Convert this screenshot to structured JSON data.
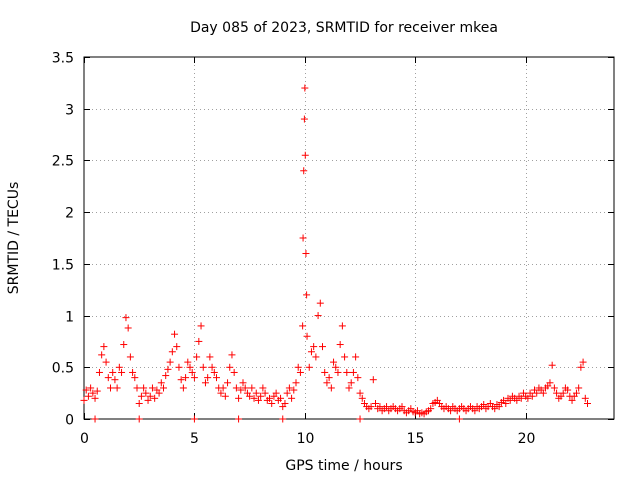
{
  "chart_data": {
    "type": "scatter",
    "title": "Day 085 of 2023, SRMTID for receiver mkea",
    "xlabel": "GPS time / hours",
    "ylabel": "SRMTID / TECUs",
    "xlim": [
      0,
      24
    ],
    "ylim": [
      0,
      3.5
    ],
    "xticks": [
      0,
      5,
      10,
      15,
      20
    ],
    "xtick_labels": [
      "0",
      "5",
      "10",
      "15",
      "20"
    ],
    "yticks": [
      0,
      0.5,
      1,
      1.5,
      2,
      2.5,
      3,
      3.5
    ],
    "ytick_labels": [
      "0",
      "0.5",
      "1",
      "1.5",
      "2",
      "2.5",
      "3",
      "3.5"
    ],
    "grid": true,
    "marker": "+",
    "series": [
      {
        "name": "SRMTID",
        "color": "#ff0000",
        "points": [
          [
            0.0,
            0.18
          ],
          [
            0.1,
            0.28
          ],
          [
            0.2,
            0.22
          ],
          [
            0.3,
            0.3
          ],
          [
            0.4,
            0.25
          ],
          [
            0.5,
            0.2
          ],
          [
            0.6,
            0.27
          ],
          [
            0.7,
            0.45
          ],
          [
            0.8,
            0.62
          ],
          [
            0.9,
            0.7
          ],
          [
            1.0,
            0.55
          ],
          [
            1.1,
            0.4
          ],
          [
            1.2,
            0.3
          ],
          [
            1.3,
            0.45
          ],
          [
            1.4,
            0.38
          ],
          [
            1.5,
            0.3
          ],
          [
            1.6,
            0.5
          ],
          [
            1.7,
            0.45
          ],
          [
            1.8,
            0.72
          ],
          [
            1.9,
            0.98
          ],
          [
            2.0,
            0.88
          ],
          [
            2.1,
            0.6
          ],
          [
            2.2,
            0.45
          ],
          [
            2.3,
            0.4
          ],
          [
            2.4,
            0.3
          ],
          [
            2.5,
            0.15
          ],
          [
            2.6,
            0.22
          ],
          [
            2.7,
            0.3
          ],
          [
            2.8,
            0.25
          ],
          [
            2.9,
            0.18
          ],
          [
            3.0,
            0.22
          ],
          [
            3.1,
            0.3
          ],
          [
            3.2,
            0.2
          ],
          [
            3.3,
            0.28
          ],
          [
            3.4,
            0.25
          ],
          [
            3.5,
            0.35
          ],
          [
            3.6,
            0.3
          ],
          [
            3.7,
            0.42
          ],
          [
            3.8,
            0.48
          ],
          [
            3.9,
            0.55
          ],
          [
            4.0,
            0.65
          ],
          [
            4.1,
            0.82
          ],
          [
            4.2,
            0.7
          ],
          [
            4.3,
            0.5
          ],
          [
            4.4,
            0.38
          ],
          [
            4.5,
            0.3
          ],
          [
            4.6,
            0.4
          ],
          [
            4.7,
            0.55
          ],
          [
            4.8,
            0.5
          ],
          [
            4.9,
            0.45
          ],
          [
            5.0,
            0.4
          ],
          [
            5.1,
            0.6
          ],
          [
            5.2,
            0.75
          ],
          [
            5.3,
            0.9
          ],
          [
            5.4,
            0.5
          ],
          [
            5.5,
            0.35
          ],
          [
            5.6,
            0.4
          ],
          [
            5.7,
            0.6
          ],
          [
            5.8,
            0.5
          ],
          [
            5.9,
            0.45
          ],
          [
            6.0,
            0.4
          ],
          [
            6.1,
            0.3
          ],
          [
            6.2,
            0.25
          ],
          [
            6.3,
            0.3
          ],
          [
            6.4,
            0.22
          ],
          [
            6.5,
            0.35
          ],
          [
            6.6,
            0.5
          ],
          [
            6.7,
            0.62
          ],
          [
            6.8,
            0.45
          ],
          [
            6.9,
            0.3
          ],
          [
            7.0,
            0.2
          ],
          [
            7.1,
            0.28
          ],
          [
            7.2,
            0.35
          ],
          [
            7.3,
            0.3
          ],
          [
            7.4,
            0.25
          ],
          [
            7.5,
            0.22
          ],
          [
            7.6,
            0.3
          ],
          [
            7.7,
            0.2
          ],
          [
            7.8,
            0.25
          ],
          [
            7.9,
            0.18
          ],
          [
            8.0,
            0.22
          ],
          [
            8.1,
            0.3
          ],
          [
            8.2,
            0.25
          ],
          [
            8.3,
            0.18
          ],
          [
            8.4,
            0.2
          ],
          [
            8.5,
            0.15
          ],
          [
            8.6,
            0.22
          ],
          [
            8.7,
            0.25
          ],
          [
            8.8,
            0.18
          ],
          [
            8.9,
            0.2
          ],
          [
            9.0,
            0.12
          ],
          [
            9.1,
            0.15
          ],
          [
            9.2,
            0.25
          ],
          [
            9.3,
            0.3
          ],
          [
            9.4,
            0.2
          ],
          [
            9.5,
            0.28
          ],
          [
            9.6,
            0.35
          ],
          [
            9.7,
            0.5
          ],
          [
            9.8,
            0.45
          ],
          [
            9.9,
            0.9
          ],
          [
            9.92,
            1.75
          ],
          [
            9.95,
            2.4
          ],
          [
            9.98,
            2.9
          ],
          [
            10.0,
            3.2
          ],
          [
            10.02,
            2.55
          ],
          [
            10.05,
            1.6
          ],
          [
            10.08,
            1.2
          ],
          [
            10.1,
            0.8
          ],
          [
            10.2,
            0.5
          ],
          [
            10.3,
            0.65
          ],
          [
            10.4,
            0.7
          ],
          [
            10.5,
            0.6
          ],
          [
            10.6,
            1.0
          ],
          [
            10.7,
            1.12
          ],
          [
            10.8,
            0.7
          ],
          [
            10.9,
            0.45
          ],
          [
            11.0,
            0.35
          ],
          [
            11.1,
            0.4
          ],
          [
            11.2,
            0.3
          ],
          [
            11.3,
            0.55
          ],
          [
            11.4,
            0.5
          ],
          [
            11.5,
            0.45
          ],
          [
            11.6,
            0.72
          ],
          [
            11.7,
            0.9
          ],
          [
            11.8,
            0.6
          ],
          [
            11.9,
            0.45
          ],
          [
            12.0,
            0.3
          ],
          [
            12.1,
            0.35
          ],
          [
            12.2,
            0.45
          ],
          [
            12.3,
            0.6
          ],
          [
            12.4,
            0.4
          ],
          [
            12.5,
            0.25
          ],
          [
            12.6,
            0.2
          ],
          [
            12.7,
            0.15
          ],
          [
            12.8,
            0.12
          ],
          [
            12.9,
            0.1
          ],
          [
            13.0,
            0.12
          ],
          [
            13.1,
            0.38
          ],
          [
            13.2,
            0.15
          ],
          [
            13.3,
            0.1
          ],
          [
            13.4,
            0.12
          ],
          [
            13.5,
            0.08
          ],
          [
            13.6,
            0.1
          ],
          [
            13.7,
            0.12
          ],
          [
            13.8,
            0.08
          ],
          [
            13.9,
            0.1
          ],
          [
            14.0,
            0.12
          ],
          [
            14.1,
            0.1
          ],
          [
            14.2,
            0.08
          ],
          [
            14.3,
            0.1
          ],
          [
            14.4,
            0.12
          ],
          [
            14.5,
            0.08
          ],
          [
            14.6,
            0.06
          ],
          [
            14.7,
            0.08
          ],
          [
            14.8,
            0.1
          ],
          [
            14.9,
            0.07
          ],
          [
            15.0,
            0.06
          ],
          [
            15.1,
            0.08
          ],
          [
            15.2,
            0.05
          ],
          [
            15.3,
            0.06
          ],
          [
            15.4,
            0.05
          ],
          [
            15.5,
            0.07
          ],
          [
            15.6,
            0.08
          ],
          [
            15.7,
            0.1
          ],
          [
            15.8,
            0.15
          ],
          [
            15.9,
            0.16
          ],
          [
            16.0,
            0.18
          ],
          [
            16.1,
            0.15
          ],
          [
            16.2,
            0.12
          ],
          [
            16.3,
            0.1
          ],
          [
            16.4,
            0.12
          ],
          [
            16.5,
            0.1
          ],
          [
            16.6,
            0.08
          ],
          [
            16.7,
            0.12
          ],
          [
            16.8,
            0.1
          ],
          [
            16.9,
            0.08
          ],
          [
            17.0,
            0.1
          ],
          [
            17.1,
            0.12
          ],
          [
            17.2,
            0.1
          ],
          [
            17.3,
            0.08
          ],
          [
            17.4,
            0.1
          ],
          [
            17.5,
            0.12
          ],
          [
            17.6,
            0.1
          ],
          [
            17.7,
            0.08
          ],
          [
            17.8,
            0.12
          ],
          [
            17.9,
            0.1
          ],
          [
            18.0,
            0.12
          ],
          [
            18.1,
            0.14
          ],
          [
            18.2,
            0.1
          ],
          [
            18.3,
            0.12
          ],
          [
            18.4,
            0.15
          ],
          [
            18.5,
            0.12
          ],
          [
            18.6,
            0.1
          ],
          [
            18.7,
            0.14
          ],
          [
            18.8,
            0.12
          ],
          [
            18.9,
            0.16
          ],
          [
            19.0,
            0.18
          ],
          [
            19.1,
            0.15
          ],
          [
            19.2,
            0.2
          ],
          [
            19.3,
            0.18
          ],
          [
            19.4,
            0.22
          ],
          [
            19.5,
            0.2
          ],
          [
            19.6,
            0.18
          ],
          [
            19.7,
            0.22
          ],
          [
            19.8,
            0.2
          ],
          [
            19.9,
            0.25
          ],
          [
            20.0,
            0.22
          ],
          [
            20.1,
            0.2
          ],
          [
            20.2,
            0.25
          ],
          [
            20.3,
            0.22
          ],
          [
            20.4,
            0.28
          ],
          [
            20.5,
            0.25
          ],
          [
            20.6,
            0.3
          ],
          [
            20.7,
            0.28
          ],
          [
            20.8,
            0.25
          ],
          [
            20.9,
            0.3
          ],
          [
            21.0,
            0.32
          ],
          [
            21.1,
            0.35
          ],
          [
            21.2,
            0.52
          ],
          [
            21.3,
            0.3
          ],
          [
            21.4,
            0.25
          ],
          [
            21.5,
            0.2
          ],
          [
            21.6,
            0.22
          ],
          [
            21.7,
            0.25
          ],
          [
            21.8,
            0.3
          ],
          [
            21.9,
            0.28
          ],
          [
            22.0,
            0.22
          ],
          [
            22.1,
            0.18
          ],
          [
            22.2,
            0.22
          ],
          [
            22.3,
            0.25
          ],
          [
            22.4,
            0.3
          ],
          [
            22.5,
            0.5
          ],
          [
            22.6,
            0.55
          ],
          [
            22.7,
            0.2
          ],
          [
            22.8,
            0.15
          ],
          [
            0.5,
            0.0
          ],
          [
            2.5,
            0.0
          ],
          [
            5.0,
            0.0
          ],
          [
            7.0,
            0.0
          ],
          [
            9.0,
            0.0
          ],
          [
            12.5,
            0.0
          ],
          [
            17.0,
            0.0
          ]
        ]
      }
    ]
  }
}
